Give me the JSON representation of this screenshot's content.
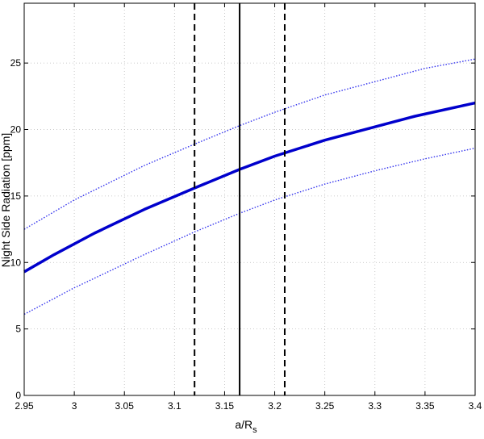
{
  "chart_data": {
    "type": "line",
    "xlabel": "a/R",
    "xlabel_subscript": "s",
    "ylabel": "Night Side Radiation [ppm]",
    "xlim": [
      2.95,
      3.4
    ],
    "ylim": [
      0,
      29.5
    ],
    "xticks": [
      "2.95",
      "3",
      "3.05",
      "3.1",
      "3.15",
      "3.2",
      "3.25",
      "3.3",
      "3.35",
      "3.4"
    ],
    "yticks": [
      "0",
      "5",
      "10",
      "15",
      "20",
      "25"
    ],
    "grid": true,
    "series": [
      {
        "style": "solid",
        "color": "#0000cc",
        "x": [
          2.95,
          2.98,
          3.02,
          3.07,
          3.12,
          3.165,
          3.2,
          3.25,
          3.3,
          3.34,
          3.4
        ],
        "y": [
          9.3,
          10.6,
          12.2,
          14.0,
          15.6,
          17.0,
          18.0,
          19.2,
          20.2,
          21.0,
          22.0
        ]
      },
      {
        "style": "dotted",
        "color": "#3333ee",
        "x": [
          2.95,
          3.0,
          3.07,
          3.12,
          3.165,
          3.2,
          3.25,
          3.3,
          3.35,
          3.4
        ],
        "y": [
          12.5,
          14.7,
          17.3,
          18.9,
          20.3,
          21.3,
          22.6,
          23.6,
          24.6,
          25.3
        ]
      },
      {
        "style": "dotted",
        "color": "#3333ee",
        "x": [
          2.95,
          3.0,
          3.07,
          3.12,
          3.165,
          3.2,
          3.25,
          3.3,
          3.35,
          3.4
        ],
        "y": [
          6.1,
          8.1,
          10.6,
          12.3,
          13.7,
          14.7,
          15.9,
          16.9,
          17.8,
          18.6
        ]
      }
    ],
    "vlines": [
      {
        "x": 3.165,
        "style": "solid"
      },
      {
        "x": 3.12,
        "style": "dashed"
      },
      {
        "x": 3.21,
        "style": "dashed"
      }
    ]
  }
}
